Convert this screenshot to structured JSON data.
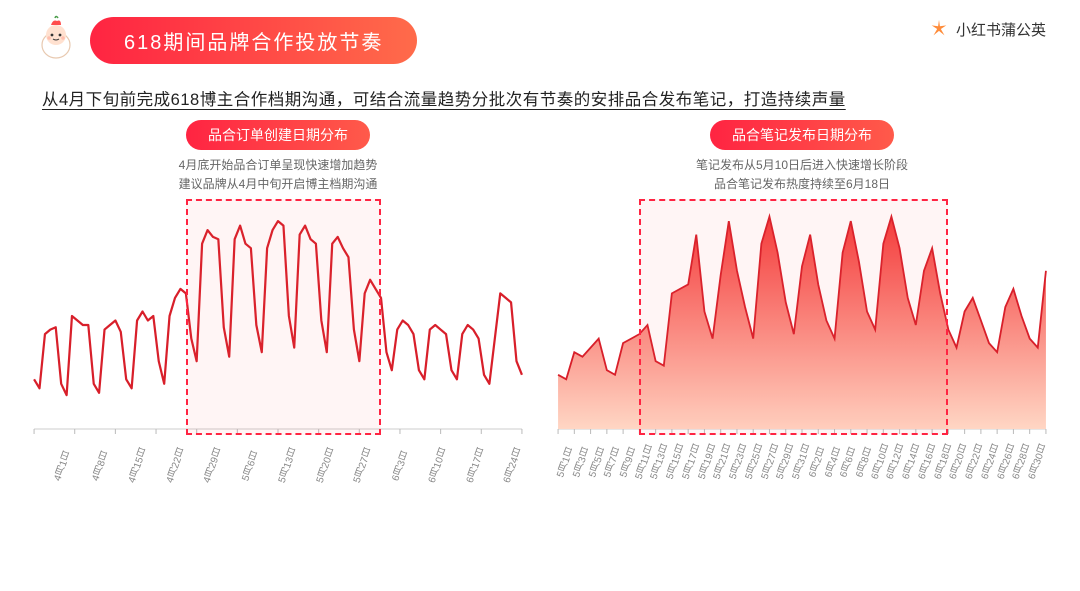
{
  "title": "618期间品牌合作投放节奏",
  "brand_logo_text": "小红书蒲公英",
  "subtitle": "从4月下旬前完成618博主合作档期沟通，可结合流量趋势分批次有节奏的安排品合发布笔记，打造持续声量",
  "colors": {
    "primary": "#ff2442",
    "primary_grad_end": "#ff6b4a",
    "area_top": "#f93a3a",
    "area_bottom": "#ffd9c8",
    "line": "#e02030",
    "highlight_border": "#ff2442",
    "highlight_fill": "rgba(255,80,80,0.06)",
    "text_dark": "#222222",
    "text_mid": "#666666",
    "text_light": "#888888",
    "bg": "#ffffff"
  },
  "chart_left": {
    "type": "line",
    "pill": "品合订单创建日期分布",
    "desc": "4月底开始品合订单呈现快速增加趋势\n建议品牌从4月中旬开启博主档期沟通",
    "x_labels": [
      "4月1日",
      "4月8日",
      "4月15日",
      "4月22日",
      "4月29日",
      "5月6日",
      "5月13日",
      "5月20日",
      "5月27日",
      "6月3日",
      "6月10日",
      "6月17日",
      "6月24日"
    ],
    "n_points": 91,
    "y_range": [
      0,
      100
    ],
    "highlight_range_idx": [
      28,
      64
    ],
    "line_color": "#d81f2a",
    "line_width": 2.2,
    "values": [
      22,
      18,
      42,
      44,
      45,
      20,
      15,
      50,
      48,
      46,
      46,
      20,
      16,
      44,
      46,
      48,
      43,
      22,
      18,
      48,
      52,
      48,
      50,
      30,
      20,
      50,
      58,
      62,
      60,
      40,
      30,
      82,
      88,
      85,
      84,
      45,
      32,
      84,
      90,
      82,
      80,
      46,
      34,
      80,
      88,
      92,
      90,
      50,
      36,
      86,
      90,
      84,
      82,
      48,
      34,
      82,
      85,
      80,
      76,
      44,
      30,
      60,
      66,
      62,
      58,
      34,
      26,
      44,
      48,
      46,
      42,
      26,
      22,
      44,
      46,
      44,
      42,
      26,
      22,
      42,
      46,
      44,
      40,
      24,
      20,
      40,
      60,
      58,
      56,
      30,
      24
    ]
  },
  "chart_right": {
    "type": "area",
    "pill": "品合笔记发布日期分布",
    "desc": "笔记发布从5月10日后进入快速增长阶段\n品合笔记发布热度持续至6月18日",
    "x_labels": [
      "5月1日",
      "5月3日",
      "5月5日",
      "5月7日",
      "5月9日",
      "5月11日",
      "5月13日",
      "5月15日",
      "5月17日",
      "5月19日",
      "5月21日",
      "5月23日",
      "5月25日",
      "5月27日",
      "5月29日",
      "5月31日",
      "6月2日",
      "6月4日",
      "6月6日",
      "6月8日",
      "6月10日",
      "6月12日",
      "6月14日",
      "6月16日",
      "6月18日",
      "6月20日",
      "6月22日",
      "6月24日",
      "6月26日",
      "6月28日",
      "6月30日"
    ],
    "n_points": 61,
    "y_range": [
      0,
      100
    ],
    "highlight_range_idx": [
      10,
      48
    ],
    "area_grad_top": "#f43a3a",
    "area_grad_bottom": "#ffd6c4",
    "line_color": "#d81f2a",
    "line_width": 1.8,
    "values": [
      24,
      22,
      34,
      32,
      36,
      40,
      26,
      24,
      38,
      40,
      42,
      46,
      30,
      28,
      60,
      62,
      64,
      86,
      52,
      40,
      68,
      92,
      70,
      54,
      40,
      82,
      94,
      78,
      56,
      42,
      72,
      86,
      64,
      48,
      40,
      78,
      92,
      74,
      52,
      44,
      82,
      94,
      80,
      58,
      46,
      70,
      80,
      60,
      44,
      36,
      52,
      58,
      48,
      38,
      34,
      54,
      62,
      50,
      40,
      36,
      70
    ]
  }
}
